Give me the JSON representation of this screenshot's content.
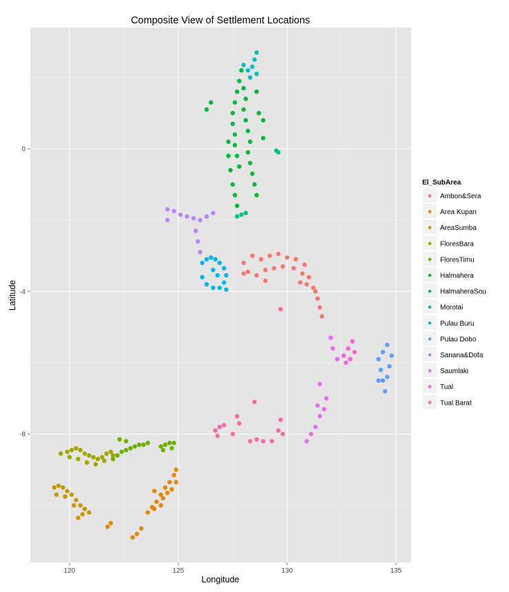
{
  "chart_data": {
    "type": "scatter",
    "title": "Composite View of Settlement Locations",
    "xlabel": "Longitude",
    "ylabel": "Latitude",
    "xlim": [
      118.2,
      135.7
    ],
    "ylim": [
      -11.6,
      3.4
    ],
    "x_ticks": [
      120,
      125,
      130,
      135
    ],
    "y_ticks": [
      0,
      -4,
      -8
    ],
    "x_tick_labels": [
      "120",
      "125",
      "130",
      "135"
    ],
    "y_tick_labels": [
      "0",
      "-4",
      "-8"
    ],
    "grid": true,
    "background": "#e5e5e5",
    "legend": {
      "title": "El_SubArea",
      "placement": "right"
    },
    "series": [
      {
        "name": "Ambon&Sera",
        "color": "#f8766d",
        "points": [
          [
            128.0,
            -3.2
          ],
          [
            128.4,
            -3.0
          ],
          [
            128.8,
            -3.1
          ],
          [
            129.2,
            -3.0
          ],
          [
            129.6,
            -2.95
          ],
          [
            130.0,
            -3.05
          ],
          [
            130.4,
            -3.1
          ],
          [
            130.8,
            -3.25
          ],
          [
            128.2,
            -3.45
          ],
          [
            128.6,
            -3.55
          ],
          [
            129.0,
            -3.4
          ],
          [
            129.4,
            -3.35
          ],
          [
            129.8,
            -3.3
          ],
          [
            130.3,
            -3.35
          ],
          [
            130.7,
            -3.5
          ],
          [
            131.0,
            -3.6
          ],
          [
            130.6,
            -3.75
          ],
          [
            130.9,
            -3.8
          ],
          [
            131.2,
            -3.9
          ],
          [
            128.0,
            -3.5
          ],
          [
            129.0,
            -3.7
          ],
          [
            131.3,
            -4.0
          ],
          [
            131.4,
            -4.2
          ],
          [
            131.5,
            -4.45
          ],
          [
            131.6,
            -4.7
          ]
        ]
      },
      {
        "name": "Area Kupan",
        "color": "#e58700",
        "points": [
          [
            123.6,
            -10.2
          ],
          [
            123.8,
            -10.05
          ],
          [
            124.0,
            -9.9
          ],
          [
            124.2,
            -9.7
          ],
          [
            124.4,
            -9.5
          ],
          [
            124.6,
            -9.35
          ],
          [
            124.8,
            -9.15
          ],
          [
            124.9,
            -9.0
          ],
          [
            123.9,
            -10.1
          ],
          [
            124.3,
            -9.8
          ],
          [
            124.7,
            -9.55
          ],
          [
            124.2,
            -10.0
          ],
          [
            124.5,
            -9.65
          ],
          [
            124.9,
            -9.35
          ],
          [
            123.9,
            -9.6
          ],
          [
            122.9,
            -10.9
          ],
          [
            123.1,
            -10.8
          ],
          [
            123.3,
            -10.65
          ],
          [
            121.9,
            -10.5
          ],
          [
            121.75,
            -10.6
          ]
        ]
      },
      {
        "name": "AreaSumba",
        "color": "#c99800",
        "points": [
          [
            119.3,
            -9.5
          ],
          [
            119.5,
            -9.45
          ],
          [
            119.7,
            -9.5
          ],
          [
            119.9,
            -9.6
          ],
          [
            120.1,
            -9.7
          ],
          [
            120.3,
            -9.85
          ],
          [
            120.5,
            -10.0
          ],
          [
            120.7,
            -10.1
          ],
          [
            120.9,
            -10.2
          ],
          [
            119.4,
            -9.7
          ],
          [
            119.8,
            -9.75
          ],
          [
            120.2,
            -10.0
          ],
          [
            120.6,
            -10.25
          ],
          [
            120.4,
            -10.35
          ]
        ]
      },
      {
        "name": "FloresBara",
        "color": "#a3a500",
        "points": [
          [
            119.9,
            -8.5
          ],
          [
            120.1,
            -8.45
          ],
          [
            120.3,
            -8.4
          ],
          [
            120.5,
            -8.45
          ],
          [
            120.7,
            -8.55
          ],
          [
            120.9,
            -8.6
          ],
          [
            121.1,
            -8.65
          ],
          [
            121.3,
            -8.7
          ],
          [
            121.5,
            -8.65
          ],
          [
            121.7,
            -8.55
          ],
          [
            121.9,
            -8.5
          ],
          [
            122.0,
            -8.6
          ],
          [
            120.4,
            -8.7
          ],
          [
            120.8,
            -8.8
          ],
          [
            121.2,
            -8.85
          ],
          [
            121.6,
            -8.75
          ],
          [
            120.0,
            -8.65
          ],
          [
            119.6,
            -8.55
          ]
        ]
      },
      {
        "name": "FloresTimu",
        "color": "#6bb100",
        "points": [
          [
            122.0,
            -8.7
          ],
          [
            122.2,
            -8.6
          ],
          [
            122.4,
            -8.5
          ],
          [
            122.6,
            -8.45
          ],
          [
            122.8,
            -8.4
          ],
          [
            123.0,
            -8.35
          ],
          [
            123.2,
            -8.3
          ],
          [
            123.4,
            -8.3
          ],
          [
            123.6,
            -8.25
          ],
          [
            122.6,
            -8.2
          ],
          [
            124.2,
            -8.35
          ],
          [
            124.4,
            -8.3
          ],
          [
            124.6,
            -8.25
          ],
          [
            124.8,
            -8.25
          ],
          [
            124.3,
            -8.45
          ],
          [
            124.7,
            -8.4
          ],
          [
            122.3,
            -8.15
          ]
        ]
      },
      {
        "name": "Halmahera",
        "color": "#00ba38",
        "points": [
          [
            127.9,
            2.2
          ],
          [
            127.8,
            1.9
          ],
          [
            127.7,
            1.6
          ],
          [
            127.6,
            1.3
          ],
          [
            127.5,
            1.0
          ],
          [
            127.5,
            0.7
          ],
          [
            127.6,
            0.4
          ],
          [
            127.6,
            0.1
          ],
          [
            127.7,
            -0.2
          ],
          [
            127.8,
            -0.5
          ],
          [
            128.0,
            1.7
          ],
          [
            128.1,
            1.4
          ],
          [
            128.0,
            1.1
          ],
          [
            128.1,
            0.8
          ],
          [
            128.2,
            0.5
          ],
          [
            128.3,
            0.2
          ],
          [
            128.2,
            -0.1
          ],
          [
            128.3,
            -0.4
          ],
          [
            128.4,
            -0.7
          ],
          [
            128.5,
            -1.0
          ],
          [
            128.6,
            -1.3
          ],
          [
            127.3,
            0.2
          ],
          [
            127.3,
            -0.2
          ],
          [
            127.4,
            -0.6
          ],
          [
            127.5,
            -1.0
          ],
          [
            127.6,
            -1.3
          ],
          [
            127.7,
            -1.6
          ],
          [
            128.7,
            1.0
          ],
          [
            128.9,
            0.8
          ],
          [
            128.9,
            0.3
          ],
          [
            128.6,
            1.6
          ],
          [
            126.3,
            1.1
          ],
          [
            126.5,
            1.3
          ]
        ]
      },
      {
        "name": "HalmaheraSou",
        "color": "#00c08b",
        "points": [
          [
            127.7,
            -1.9
          ],
          [
            127.9,
            -1.85
          ],
          [
            128.1,
            -1.8
          ],
          [
            129.5,
            -0.05
          ],
          [
            129.6,
            -0.1
          ]
        ]
      },
      {
        "name": "Morotai",
        "color": "#00bfc4",
        "points": [
          [
            128.2,
            2.2
          ],
          [
            128.4,
            2.3
          ],
          [
            128.5,
            2.5
          ],
          [
            128.6,
            2.7
          ],
          [
            128.3,
            2.0
          ],
          [
            128.6,
            2.1
          ],
          [
            128.0,
            2.35
          ]
        ]
      },
      {
        "name": "Pulau Buru",
        "color": "#00b4f0",
        "points": [
          [
            126.1,
            -3.2
          ],
          [
            126.3,
            -3.1
          ],
          [
            126.5,
            -3.05
          ],
          [
            126.7,
            -3.1
          ],
          [
            126.9,
            -3.2
          ],
          [
            127.1,
            -3.35
          ],
          [
            127.2,
            -3.55
          ],
          [
            127.1,
            -3.75
          ],
          [
            126.9,
            -3.9
          ],
          [
            126.6,
            -3.9
          ],
          [
            126.3,
            -3.8
          ],
          [
            126.1,
            -3.6
          ],
          [
            126.6,
            -3.4
          ],
          [
            126.8,
            -3.55
          ],
          [
            127.2,
            -3.95
          ]
        ]
      },
      {
        "name": "Pulau Dobo",
        "color": "#619cff",
        "points": [
          [
            134.2,
            -5.9
          ],
          [
            134.3,
            -6.2
          ],
          [
            134.4,
            -6.5
          ],
          [
            134.5,
            -6.8
          ],
          [
            134.6,
            -6.4
          ],
          [
            134.7,
            -6.1
          ],
          [
            134.8,
            -5.8
          ],
          [
            134.6,
            -5.5
          ],
          [
            134.4,
            -5.7
          ],
          [
            134.2,
            -6.5
          ]
        ]
      },
      {
        "name": "Sanana&Dofa",
        "color": "#b983ff",
        "points": [
          [
            124.5,
            -1.7
          ],
          [
            124.8,
            -1.75
          ],
          [
            125.1,
            -1.85
          ],
          [
            125.4,
            -1.9
          ],
          [
            125.7,
            -1.95
          ],
          [
            126.0,
            -2.0
          ],
          [
            126.3,
            -1.9
          ],
          [
            124.5,
            -2.0
          ],
          [
            125.8,
            -2.3
          ],
          [
            125.9,
            -2.6
          ],
          [
            126.0,
            -2.9
          ],
          [
            126.6,
            -1.8
          ]
        ]
      },
      {
        "name": "Saumlaki",
        "color": "#e76bf3",
        "points": [
          [
            130.9,
            -8.2
          ],
          [
            131.1,
            -8.0
          ],
          [
            131.3,
            -7.8
          ],
          [
            131.5,
            -7.5
          ],
          [
            131.7,
            -7.3
          ],
          [
            131.8,
            -7.0
          ],
          [
            131.5,
            -6.6
          ],
          [
            131.4,
            -7.2
          ],
          [
            132.0,
            -5.3
          ],
          [
            132.1,
            -5.6
          ],
          [
            132.3,
            -5.9
          ]
        ]
      },
      {
        "name": "Tual",
        "color": "#fd61d1",
        "points": [
          [
            132.6,
            -5.8
          ],
          [
            132.8,
            -5.6
          ],
          [
            133.0,
            -5.4
          ],
          [
            132.9,
            -5.9
          ],
          [
            132.7,
            -6.0
          ],
          [
            133.1,
            -5.7
          ]
        ]
      },
      {
        "name": "Tual Barat",
        "color": "#ff67a4",
        "points": [
          [
            126.7,
            -7.9
          ],
          [
            126.9,
            -7.8
          ],
          [
            127.1,
            -7.75
          ],
          [
            126.8,
            -8.05
          ],
          [
            127.5,
            -8.0
          ],
          [
            127.7,
            -7.5
          ],
          [
            127.8,
            -7.7
          ],
          [
            128.3,
            -8.2
          ],
          [
            128.6,
            -8.15
          ],
          [
            128.9,
            -8.2
          ],
          [
            129.3,
            -8.2
          ],
          [
            129.6,
            -7.9
          ],
          [
            129.8,
            -8.0
          ],
          [
            129.7,
            -7.6
          ],
          [
            128.5,
            -7.1
          ],
          [
            129.7,
            -4.5
          ]
        ]
      }
    ]
  }
}
